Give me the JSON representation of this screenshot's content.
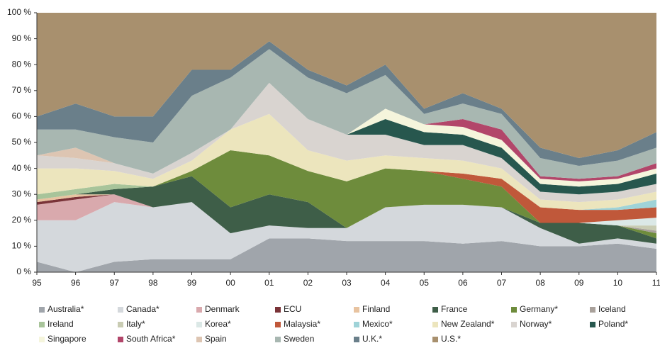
{
  "chart_data": {
    "type": "stacked_area",
    "x": [
      1995,
      1996,
      1997,
      1998,
      1999,
      2000,
      2001,
      2002,
      2003,
      2004,
      2005,
      2006,
      2007,
      2008,
      2009,
      2010,
      2011
    ],
    "xlim": [
      1995,
      2011
    ],
    "xticks": [
      {
        "value": 1995,
        "label": "95"
      },
      {
        "value": 1996,
        "label": "96"
      },
      {
        "value": 1997,
        "label": "97"
      },
      {
        "value": 1998,
        "label": "98"
      },
      {
        "value": 1999,
        "label": "99"
      },
      {
        "value": 2000,
        "label": "00"
      },
      {
        "value": 2001,
        "label": "01"
      },
      {
        "value": 2002,
        "label": "02"
      },
      {
        "value": 2003,
        "label": "03"
      },
      {
        "value": 2004,
        "label": "04"
      },
      {
        "value": 2005,
        "label": "05"
      },
      {
        "value": 2006,
        "label": "06"
      },
      {
        "value": 2007,
        "label": "07"
      },
      {
        "value": 2008,
        "label": "08"
      },
      {
        "value": 2009,
        "label": "09"
      },
      {
        "value": 2010,
        "label": "10"
      },
      {
        "value": 2011,
        "label": "11"
      }
    ],
    "ylim": [
      0,
      100
    ],
    "yticks": [
      {
        "value": 0,
        "label": "0 %"
      },
      {
        "value": 10,
        "label": "10 %"
      },
      {
        "value": 20,
        "label": "20 %"
      },
      {
        "value": 30,
        "label": "30 %"
      },
      {
        "value": 40,
        "label": "40 %"
      },
      {
        "value": 50,
        "label": "50 %"
      },
      {
        "value": 60,
        "label": "60 %"
      },
      {
        "value": 70,
        "label": "70 %"
      },
      {
        "value": 80,
        "label": "80 %"
      },
      {
        "value": 90,
        "label": "90 %"
      },
      {
        "value": 100,
        "label": "100 %"
      }
    ],
    "series": [
      {
        "name": "Australia*",
        "color": "#a0a5ab",
        "values": [
          4,
          0,
          4,
          5,
          5,
          5,
          13,
          13,
          12,
          12,
          12,
          11,
          12,
          10,
          10,
          11,
          9
        ]
      },
      {
        "name": "Canada*",
        "color": "#d4d8dc",
        "values": [
          16,
          20,
          23,
          20,
          22,
          10,
          5,
          4,
          5,
          13,
          14,
          15,
          13,
          7,
          1,
          2,
          2
        ]
      },
      {
        "name": "Denmark",
        "color": "#d9a9ad",
        "values": [
          6,
          8,
          3,
          0,
          0,
          0,
          0,
          0,
          0,
          0,
          0,
          0,
          0,
          0,
          0,
          0,
          0
        ]
      },
      {
        "name": "ECU",
        "color": "#7a3338",
        "values": [
          1,
          1,
          0,
          0,
          0,
          0,
          0,
          0,
          0,
          0,
          0,
          0,
          0,
          0,
          0,
          0,
          0
        ]
      },
      {
        "name": "Finland",
        "color": "#e8c3a0",
        "values": [
          1,
          1,
          0,
          0,
          0,
          0,
          0,
          0,
          0,
          0,
          0,
          0,
          0,
          0,
          0,
          0,
          0
        ]
      },
      {
        "name": "France",
        "color": "#3e5e48",
        "values": [
          0,
          0,
          2,
          8,
          10,
          10,
          12,
          10,
          0,
          0,
          0,
          0,
          0,
          2,
          8,
          5,
          2
        ]
      },
      {
        "name": "Germany*",
        "color": "#6e8c3c",
        "values": [
          0,
          0,
          0,
          0,
          2,
          22,
          15,
          12,
          18,
          15,
          13,
          10,
          8,
          0,
          0,
          0,
          2
        ]
      },
      {
        "name": "Iceland",
        "color": "#a9a19b",
        "values": [
          0,
          0,
          0,
          0,
          0,
          0,
          0,
          0,
          0,
          0,
          0,
          0,
          0,
          0,
          0,
          0,
          1
        ]
      },
      {
        "name": "Ireland",
        "color": "#a8c49a",
        "values": [
          2,
          2,
          2,
          0,
          0,
          0,
          0,
          0,
          0,
          0,
          0,
          0,
          0,
          0,
          0,
          0,
          0
        ]
      },
      {
        "name": "Italy*",
        "color": "#c9ccb3",
        "values": [
          0,
          0,
          0,
          0,
          0,
          0,
          0,
          0,
          0,
          0,
          0,
          0,
          0,
          0,
          0,
          0,
          2
        ]
      },
      {
        "name": "Korea*",
        "color": "#dbe8e6",
        "values": [
          0,
          0,
          0,
          0,
          0,
          0,
          0,
          0,
          0,
          0,
          0,
          0,
          0,
          0,
          0,
          2,
          3
        ]
      },
      {
        "name": "Malaysia*",
        "color": "#c0583a",
        "values": [
          0,
          0,
          0,
          0,
          0,
          0,
          0,
          0,
          0,
          0,
          0,
          2,
          3,
          6,
          5,
          4,
          4
        ]
      },
      {
        "name": "Mexico*",
        "color": "#9fd3d8",
        "values": [
          0,
          0,
          0,
          0,
          0,
          0,
          0,
          0,
          0,
          0,
          0,
          0,
          0,
          0,
          0,
          1,
          3
        ]
      },
      {
        "name": "New Zealand*",
        "color": "#ece5bd",
        "values": [
          10,
          8,
          5,
          3,
          4,
          8,
          16,
          8,
          8,
          5,
          5,
          5,
          4,
          3,
          3,
          3,
          3
        ]
      },
      {
        "name": "Norway*",
        "color": "#d9d4d0",
        "values": [
          5,
          4,
          3,
          2,
          3,
          0,
          12,
          12,
          10,
          8,
          5,
          6,
          4,
          3,
          3,
          3,
          3
        ]
      },
      {
        "name": "Poland*",
        "color": "#27574e",
        "values": [
          0,
          0,
          0,
          0,
          0,
          0,
          0,
          0,
          0,
          6,
          5,
          4,
          4,
          3,
          3,
          3,
          4
        ]
      },
      {
        "name": "Singapore",
        "color": "#f5f5dc",
        "values": [
          0,
          0,
          0,
          0,
          0,
          0,
          0,
          0,
          0,
          4,
          3,
          3,
          3,
          2,
          2,
          2,
          2
        ]
      },
      {
        "name": "South Africa*",
        "color": "#b2466a",
        "values": [
          0,
          0,
          0,
          0,
          0,
          0,
          0,
          0,
          0,
          0,
          0,
          3,
          4,
          1,
          1,
          1,
          2
        ]
      },
      {
        "name": "Spain",
        "color": "#ddc5b2",
        "values": [
          0,
          4,
          0,
          0,
          0,
          0,
          0,
          0,
          0,
          0,
          0,
          0,
          0,
          0,
          0,
          0,
          0
        ]
      },
      {
        "name": "Sweden",
        "color": "#a8b7b1",
        "values": [
          10,
          7,
          10,
          12,
          22,
          20,
          13,
          16,
          16,
          13,
          4,
          6,
          6,
          7,
          5,
          6,
          6
        ]
      },
      {
        "name": "U.K.*",
        "color": "#6a7f8a",
        "values": [
          5,
          10,
          8,
          10,
          10,
          3,
          3,
          3,
          3,
          4,
          2,
          4,
          2,
          4,
          3,
          4,
          6
        ]
      },
      {
        "name": "U.S.*",
        "color": "#a8906e",
        "values": [
          40,
          35,
          40,
          40,
          22,
          22,
          11,
          22,
          28,
          20,
          37,
          31,
          37,
          52,
          56,
          53,
          46
        ]
      }
    ]
  }
}
